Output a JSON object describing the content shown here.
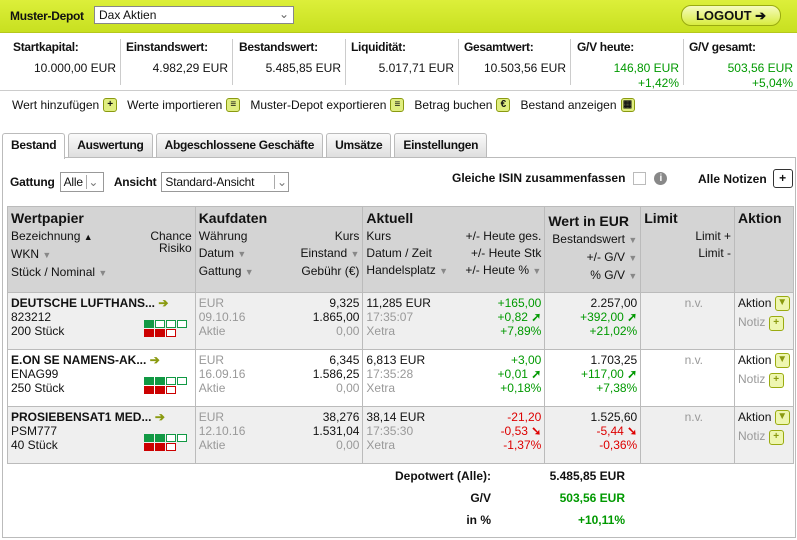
{
  "header": {
    "depot_label": "Muster-Depot",
    "depot_select": "Dax Aktien",
    "logout": "LOGOUT ➔"
  },
  "summary": [
    {
      "label": "Startkapital:",
      "value": "10.000,00 EUR"
    },
    {
      "label": "Einstandswert:",
      "value": "4.982,29 EUR"
    },
    {
      "label": "Bestandswert:",
      "value": "5.485,85 EUR"
    },
    {
      "label": "Liquidität:",
      "value": "5.017,71 EUR"
    },
    {
      "label": "Gesamtwert:",
      "value": "10.503,56 EUR"
    },
    {
      "label": "G/V heute:",
      "value": "146,80 EUR",
      "pct": "+1,42%"
    },
    {
      "label": "G/V gesamt:",
      "value": "503,56 EUR",
      "pct": "+5,04%"
    }
  ],
  "actions": [
    "Wert hinzufügen",
    "Werte importieren",
    "Muster-Depot exportieren",
    "Betrag buchen",
    "Bestand anzeigen"
  ],
  "action_icons": [
    "plus-icon",
    "import-icon",
    "export-icon",
    "euro-icon",
    "grid-icon"
  ],
  "tabs": [
    "Bestand",
    "Auswertung",
    "Abgeschlossene Geschäfte",
    "Umsätze",
    "Einstellungen"
  ],
  "active_tab": "Bestand",
  "filters": {
    "gattung_label": "Gattung",
    "gattung_value": "Alle",
    "ansicht_label": "Ansicht",
    "ansicht_value": "Standard-Ansicht",
    "isin_label": "Gleiche ISIN zusammenfassen",
    "isin_checked": false,
    "notizen_label": "Alle Notizen"
  },
  "columns": {
    "wertpapier": {
      "title": "Wertpapier",
      "bezeichnung": "Bezeichnung",
      "wkn": "WKN",
      "stueck": "Stück / Nominal",
      "chance": "Chance",
      "risiko": "Risiko"
    },
    "kaufdaten": {
      "title": "Kaufdaten",
      "waehrung": "Währung",
      "kurs": "Kurs",
      "datum": "Datum",
      "einstand": "Einstand",
      "gattung": "Gattung",
      "gebuehr": "Gebühr (€)"
    },
    "aktuell": {
      "title": "Aktuell",
      "kurs": "Kurs",
      "heute_ges": "+/- Heute ges.",
      "datum": "Datum / Zeit",
      "heute_stk": "+/- Heute Stk",
      "handelsplatz": "Handelsplatz",
      "heute_pct": "+/- Heute %"
    },
    "wert": {
      "title": "Wert in EUR",
      "bestandswert": "Bestandswert",
      "gv": "+/- G/V",
      "pct_gv": "% G/V"
    },
    "limit": {
      "title": "Limit",
      "plus": "Limit +",
      "minus": "Limit -"
    },
    "aktion": {
      "title": "Aktion"
    }
  },
  "rows": [
    {
      "name": "DEUTSCHE LUFTHANS...",
      "wkn": "823212",
      "stueck": "200 Stück",
      "chance": 1,
      "risiko": 2,
      "waehrung": "EUR",
      "datum": "09.10.16",
      "gattung": "Aktie",
      "kaufkurs": "9,325",
      "einstand": "1.865,00",
      "gebuehr": "0,00",
      "kurs": "11,285 EUR",
      "zeit": "17:35:07",
      "platz": "Xetra",
      "heute_ges": "+165,00",
      "heute_stk": "+0,82",
      "heute_pct": "+7,89%",
      "bestandswert": "2.257,00",
      "gv": "+392,00",
      "gv_pct": "+21,02%",
      "trend": "up",
      "limit": "n.v.",
      "aktion": "Aktion",
      "notiz": "Notiz"
    },
    {
      "name": "E.ON SE NAMENS-AK...",
      "wkn": "ENAG99",
      "stueck": "250 Stück",
      "chance": 2,
      "risiko": 2,
      "waehrung": "EUR",
      "datum": "16.09.16",
      "gattung": "Aktie",
      "kaufkurs": "6,345",
      "einstand": "1.586,25",
      "gebuehr": "0,00",
      "kurs": "6,813 EUR",
      "zeit": "17:35:28",
      "platz": "Xetra",
      "heute_ges": "+3,00",
      "heute_stk": "+0,01",
      "heute_pct": "+0,18%",
      "bestandswert": "1.703,25",
      "gv": "+117,00",
      "gv_pct": "+7,38%",
      "trend": "up",
      "limit": "n.v.",
      "aktion": "Aktion",
      "notiz": "Notiz"
    },
    {
      "name": "PROSIEBENSAT1 MED...",
      "wkn": "PSM777",
      "stueck": "40 Stück",
      "chance": 2,
      "risiko": 2,
      "waehrung": "EUR",
      "datum": "12.10.16",
      "gattung": "Aktie",
      "kaufkurs": "38,276",
      "einstand": "1.531,04",
      "gebuehr": "0,00",
      "kurs": "38,14 EUR",
      "zeit": "17:35:30",
      "platz": "Xetra",
      "heute_ges": "-21,20",
      "heute_stk": "-0,53",
      "heute_pct": "-1,37%",
      "bestandswert": "1.525,60",
      "gv": "-5,44",
      "gv_pct": "-0,36%",
      "trend": "down",
      "limit": "n.v.",
      "aktion": "Aktion",
      "notiz": "Notiz"
    }
  ],
  "footer": {
    "depotwert_label": "Depotwert (Alle):",
    "depotwert": "5.485,85 EUR",
    "gv_label": "G/V",
    "gv": "503,56 EUR",
    "pct_label": "in %",
    "pct": "+10,11%"
  },
  "colors": {
    "brand": "#cfe52c",
    "positive": "#009900",
    "negative": "#dd0000",
    "chance": "#119944",
    "risk": "#cc0000"
  }
}
